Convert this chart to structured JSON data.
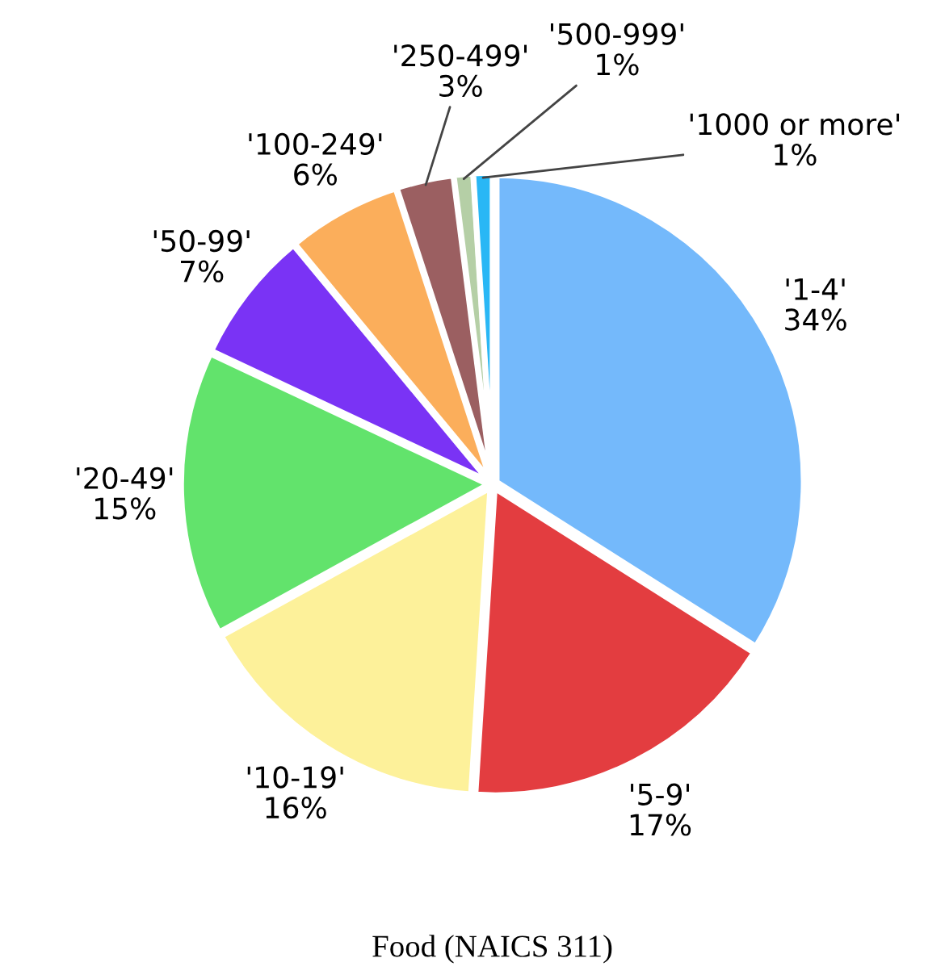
{
  "chart_data": {
    "type": "pie",
    "title": "Food (NAICS 311)",
    "categories": [
      "'1-4'",
      "'5-9'",
      "'10-19'",
      "'20-49'",
      "'50-99'",
      "'100-249'",
      "'250-499'",
      "'500-999'",
      "'1000 or more'"
    ],
    "values": [
      34,
      17,
      16,
      15,
      7,
      6,
      3,
      1,
      1
    ],
    "value_labels": [
      "34%",
      "17%",
      "16%",
      "15%",
      "7%",
      "6%",
      "3%",
      "1%",
      "1%"
    ],
    "colors": [
      "#74b9fb",
      "#e33d40",
      "#fdf19a",
      "#62e36c",
      "#7a33f5",
      "#fbae5b",
      "#9b5f61",
      "#b5cfa6",
      "#29b7f5"
    ]
  }
}
